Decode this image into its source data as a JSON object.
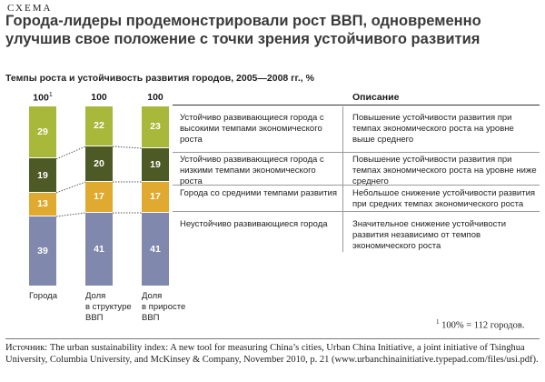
{
  "kicker": "СХЕМА",
  "headline": "Города-лидеры продемонстрировали рост ВВП, одновременно улучшив свое положение с точки зрения устойчивого развития",
  "chart_data": {
    "type": "bar",
    "subtitle": "Темпы роста и устойчивость развития городов, 2005—2008 гг., %",
    "stacked": true,
    "categories": [
      "Города",
      "Доля в структуре ВВП",
      "Доля в приросте ВВП"
    ],
    "totals": [
      "100",
      "100",
      "100"
    ],
    "total_footnote_marker": "1",
    "series": [
      {
        "name": "Устойчиво развивающиеся города с высокими темпами экономического роста",
        "color": "#a8b83a",
        "values": [
          29,
          22,
          23
        ]
      },
      {
        "name": "Устойчиво развивающиеся города с низкими темпами экономического роста",
        "color": "#4d5a26",
        "values": [
          19,
          20,
          19
        ]
      },
      {
        "name": "Города со средними темпами развития",
        "color": "#e0a92f",
        "values": [
          13,
          17,
          17
        ]
      },
      {
        "name": "Неустойчиво развивающиеся города",
        "color": "#8088ad",
        "values": [
          39,
          41,
          41
        ]
      }
    ],
    "description_header": "Описание",
    "descriptions": [
      "Повышение устойчивости развития при темпах экономического роста на уровне выше среднего",
      "Повышение устойчивости развития при темпах экономического роста на уровне ниже среднего",
      "Небольшое снижение устойчивости развития при средних темпах экономического роста",
      "Значительное снижение устойчивости развития независимо от темпов экономического роста"
    ],
    "xlabels": [
      [
        "Города"
      ],
      [
        "Доля",
        "в структуре",
        "ВВП"
      ],
      [
        "Доля",
        "в приросте",
        "ВВП"
      ]
    ],
    "ylim": [
      0,
      100
    ]
  },
  "footnote": {
    "marker": "1",
    "text": "100% = 112 городов."
  },
  "source": "Источник: The urban sustainability index: A new tool for measuring China’s cities, Urban China Initiative, a joint initiative of Tsinghua University, Columbia University, and McKinsey & Company, November 2010, p. 21 (www.urbanchinainitiative.typepad.com/files/usi.pdf)."
}
